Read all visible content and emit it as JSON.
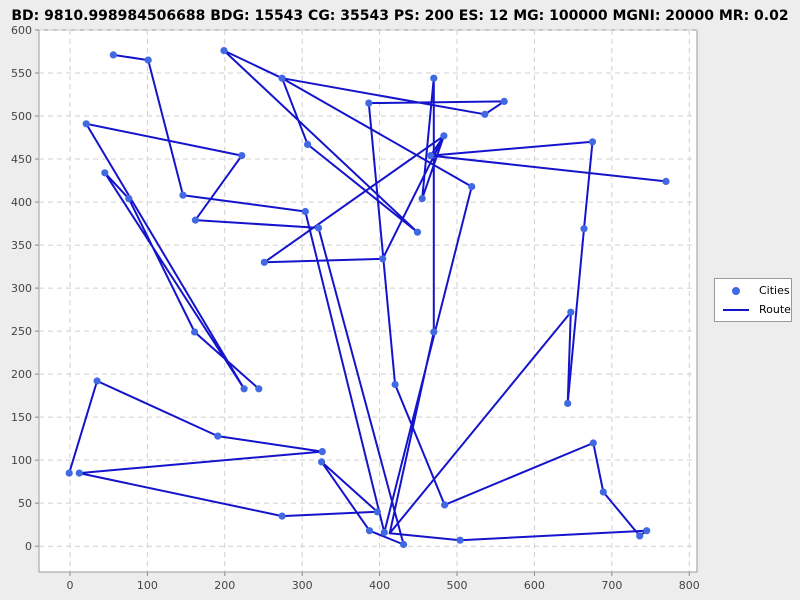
{
  "title": "BD: 9810.998984506688   BDG: 15543   CG: 35543   PS: 200   ES: 12   MG: 100000   MGNI: 20000   MR: 0.02",
  "chart_data": {
    "type": "line",
    "title": "BD: 9810.998984506688   BDG: 15543   CG: 35543   PS: 200   ES: 12   MG: 100000   MGNI: 20000   MR: 0.02",
    "xlabel": "",
    "ylabel": "",
    "xlim": [
      -40,
      810
    ],
    "ylim": [
      -30,
      600
    ],
    "xticks": [
      0,
      100,
      200,
      300,
      400,
      500,
      600,
      700,
      800
    ],
    "yticks": [
      0,
      50,
      100,
      150,
      200,
      250,
      300,
      350,
      400,
      450,
      500,
      550,
      600
    ],
    "grid": true,
    "legend_position": "right",
    "legend": [
      "Cities",
      "Route"
    ],
    "colors": {
      "cities": "#4169e1",
      "route": "#1414cc"
    },
    "series": [
      {
        "name": "Route",
        "points": [
          [
            -1,
            85
          ],
          [
            35,
            192
          ],
          [
            191,
            128
          ],
          [
            326,
            110
          ],
          [
            12,
            85
          ],
          [
            274,
            35
          ],
          [
            397,
            40
          ],
          [
            325,
            98
          ],
          [
            387,
            18
          ],
          [
            431,
            2
          ],
          [
            321,
            370
          ],
          [
            162,
            379
          ],
          [
            222,
            454
          ],
          [
            21,
            491
          ],
          [
            225,
            183
          ],
          [
            45,
            434
          ],
          [
            76,
            404
          ],
          [
            161,
            249
          ],
          [
            244,
            183
          ]
        ]
      },
      {
        "name": "Route",
        "points": [
          [
            56,
            571
          ],
          [
            101,
            565
          ],
          [
            146,
            408
          ],
          [
            304,
            389
          ],
          [
            406,
            16
          ],
          [
            519,
            418
          ],
          [
            274,
            544
          ],
          [
            199,
            576
          ],
          [
            449,
            365
          ],
          [
            307,
            467
          ],
          [
            274,
            544
          ],
          [
            536,
            502
          ],
          [
            561,
            517
          ],
          [
            386,
            515
          ],
          [
            420,
            188
          ],
          [
            484,
            48
          ],
          [
            676,
            120
          ],
          [
            689,
            63
          ],
          [
            736,
            12
          ],
          [
            745,
            18
          ],
          [
            504,
            7
          ],
          [
            413,
            15
          ],
          [
            470,
            249
          ],
          [
            470,
            544
          ],
          [
            455,
            404
          ],
          [
            483,
            477
          ],
          [
            404,
            334
          ],
          [
            251,
            330
          ],
          [
            483,
            477
          ],
          [
            466,
            454
          ],
          [
            770,
            424
          ],
          [
            466,
            454
          ],
          [
            675,
            470
          ],
          [
            664,
            369
          ],
          [
            643,
            166
          ],
          [
            647,
            272
          ],
          [
            413,
            15
          ]
        ]
      }
    ],
    "cities": [
      [
        -1,
        85
      ],
      [
        35,
        192
      ],
      [
        191,
        128
      ],
      [
        326,
        110
      ],
      [
        12,
        85
      ],
      [
        274,
        35
      ],
      [
        397,
        40
      ],
      [
        325,
        98
      ],
      [
        387,
        18
      ],
      [
        431,
        2
      ],
      [
        321,
        370
      ],
      [
        162,
        379
      ],
      [
        222,
        454
      ],
      [
        21,
        491
      ],
      [
        225,
        183
      ],
      [
        45,
        434
      ],
      [
        76,
        404
      ],
      [
        161,
        249
      ],
      [
        244,
        183
      ],
      [
        56,
        571
      ],
      [
        101,
        565
      ],
      [
        146,
        408
      ],
      [
        304,
        389
      ],
      [
        406,
        16
      ],
      [
        519,
        418
      ],
      [
        274,
        544
      ],
      [
        199,
        576
      ],
      [
        449,
        365
      ],
      [
        307,
        467
      ],
      [
        536,
        502
      ],
      [
        561,
        517
      ],
      [
        386,
        515
      ],
      [
        420,
        188
      ],
      [
        484,
        48
      ],
      [
        676,
        120
      ],
      [
        689,
        63
      ],
      [
        736,
        12
      ],
      [
        745,
        18
      ],
      [
        504,
        7
      ],
      [
        470,
        249
      ],
      [
        470,
        544
      ],
      [
        455,
        404
      ],
      [
        483,
        477
      ],
      [
        404,
        334
      ],
      [
        251,
        330
      ],
      [
        466,
        454
      ],
      [
        770,
        424
      ],
      [
        675,
        470
      ],
      [
        664,
        369
      ],
      [
        643,
        166
      ],
      [
        647,
        272
      ]
    ]
  }
}
